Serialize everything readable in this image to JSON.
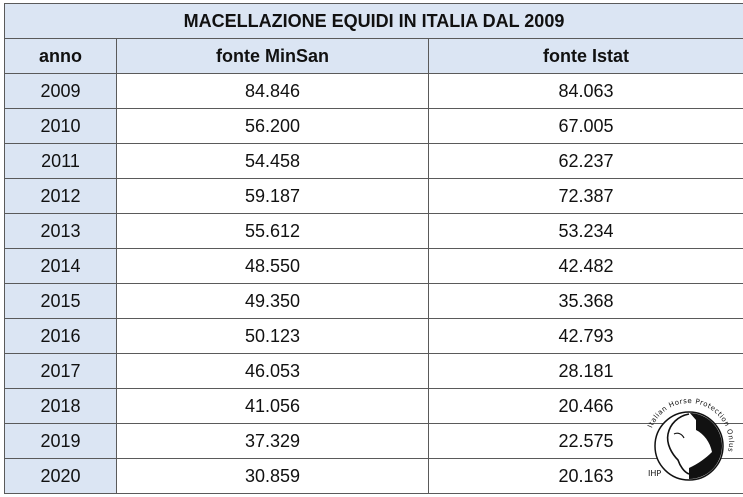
{
  "table": {
    "title": "MACELLAZIONE EQUIDI IN ITALIA DAL 2009",
    "headers": {
      "year": "anno",
      "minsan": "fonte MinSan",
      "istat": "fonte Istat"
    },
    "rows": [
      {
        "year": "2009",
        "minsan": "84.846",
        "istat": "84.063"
      },
      {
        "year": "2010",
        "minsan": "56.200",
        "istat": "67.005"
      },
      {
        "year": "2011",
        "minsan": "54.458",
        "istat": "62.237"
      },
      {
        "year": "2012",
        "minsan": "59.187",
        "istat": "72.387"
      },
      {
        "year": "2013",
        "minsan": "55.612",
        "istat": "53.234"
      },
      {
        "year": "2014",
        "minsan": "48.550",
        "istat": "42.482"
      },
      {
        "year": "2015",
        "minsan": "49.350",
        "istat": "35.368"
      },
      {
        "year": "2016",
        "minsan": "50.123",
        "istat": "42.793"
      },
      {
        "year": "2017",
        "minsan": "46.053",
        "istat": "28.181"
      },
      {
        "year": "2018",
        "minsan": "41.056",
        "istat": "20.466"
      },
      {
        "year": "2019",
        "minsan": "37.329",
        "istat": "22.575"
      },
      {
        "year": "2020",
        "minsan": "30.859",
        "istat": "20.163"
      }
    ]
  },
  "logo": {
    "ring_text": "Italian Horse Protection Onlus",
    "initials": "IHP"
  },
  "colors": {
    "header_fill": "#dbe5f3",
    "border": "#5a5a5a"
  }
}
